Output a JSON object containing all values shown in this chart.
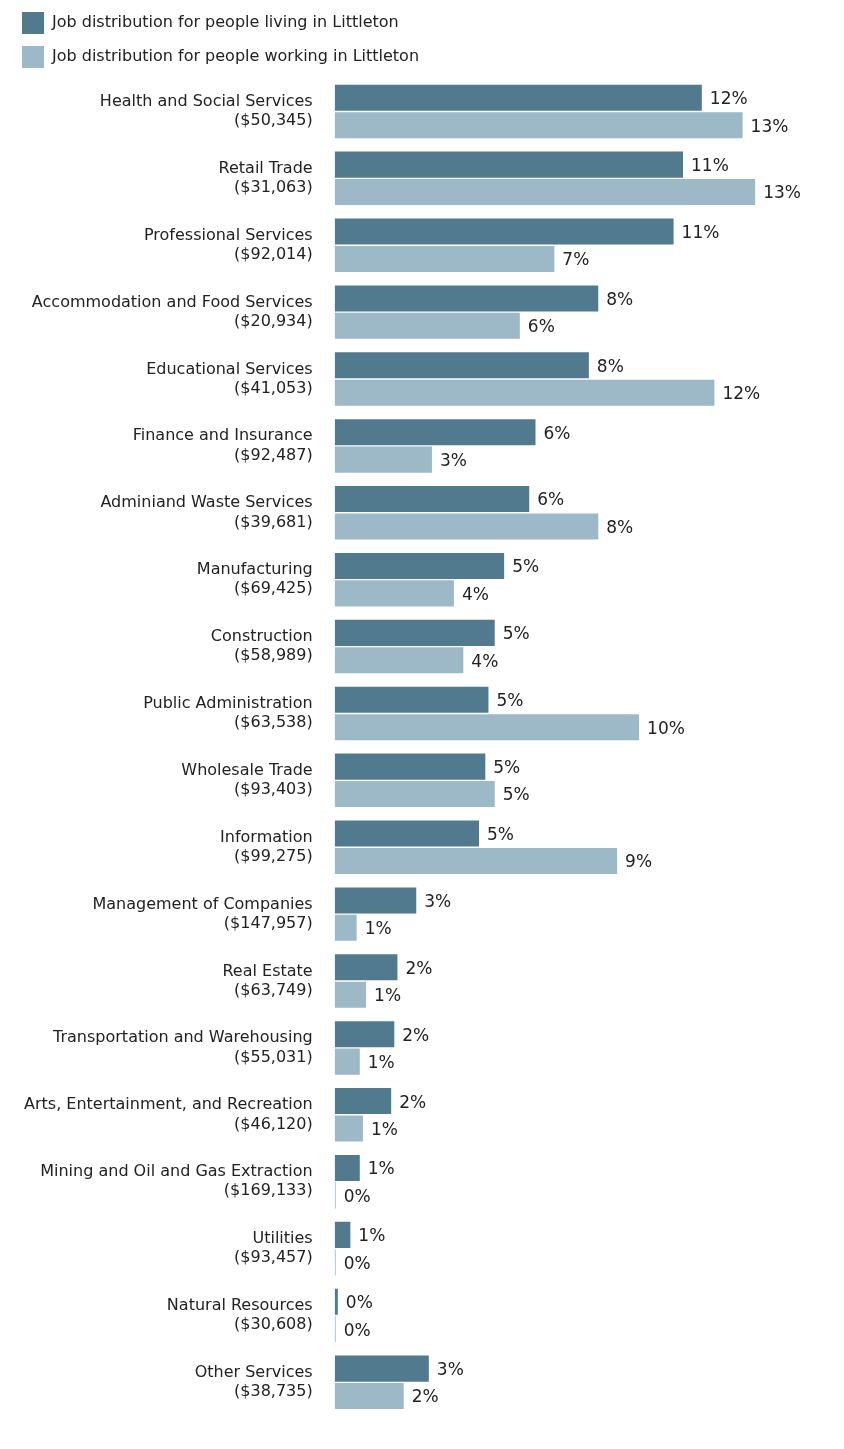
{
  "chart_data": {
    "type": "bar",
    "orientation": "horizontal",
    "legend": "top left",
    "categories": [
      "Health and Social Services ($50,345)",
      "Retail Trade ($31,063)",
      "Professional Services ($92,014)",
      "Accommodation and Food Services ($20,934)",
      "Educational Services ($41,053)",
      "Finance and Insurance ($92,487)",
      "Adminiand Waste Services ($39,681)",
      "Manufacturing ($69,425)",
      "Construction ($58,989)",
      "Public Administration ($63,538)",
      "Wholesale Trade ($93,403)",
      "Information ($99,275)",
      "Management of Companies ($147,957)",
      "Real Estate ($63,749)",
      "Transportation and Warehousing ($55,031)",
      "Arts, Entertainment, and Recreation ($46,120)",
      "Mining and Oil and Gas Extraction ($169,133)",
      "Utilities ($93,457)",
      "Natural Resources ($30,608)",
      "Other Services ($38,735)"
    ],
    "series": [
      {
        "name": "Job distribution for people living in Littleton",
        "color": "#527a8e",
        "values": [
          11.7,
          11.1,
          10.8,
          8.4,
          8.1,
          6.4,
          6.2,
          5.4,
          5.1,
          4.9,
          4.8,
          4.6,
          2.6,
          2.0,
          1.9,
          1.8,
          0.8,
          0.5,
          0.1,
          3.0
        ],
        "value_labels": [
          "12%",
          "11%",
          "11%",
          "8%",
          "8%",
          "6%",
          "6%",
          "5%",
          "5%",
          "5%",
          "5%",
          "5%",
          "3%",
          "2%",
          "2%",
          "2%",
          "1%",
          "1%",
          "0%",
          "3%"
        ]
      },
      {
        "name": "Job distribution for people working in Littleton",
        "color": "#9db8c6",
        "values": [
          13.0,
          13.4,
          7.0,
          5.9,
          12.1,
          3.1,
          8.4,
          3.8,
          4.1,
          9.7,
          5.1,
          9.0,
          0.7,
          1.0,
          0.8,
          0.9,
          0.03,
          0,
          0,
          2.2
        ],
        "value_labels": [
          "13%",
          "13%",
          "7%",
          "6%",
          "12%",
          "3%",
          "8%",
          "4%",
          "4%",
          "10%",
          "5%",
          "9%",
          "1%",
          "1%",
          "1%",
          "1%",
          "0%",
          "0%",
          "0%",
          "2%"
        ]
      }
    ]
  }
}
